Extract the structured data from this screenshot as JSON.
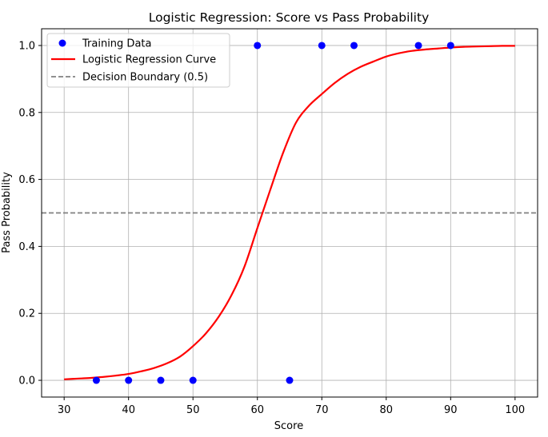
{
  "chart_data": {
    "type": "scatter",
    "title": "Logistic Regression: Score vs Pass Probability",
    "xlabel": "Score",
    "ylabel": "Pass Probability",
    "xlim": [
      26.5,
      103.5
    ],
    "ylim": [
      -0.05,
      1.05
    ],
    "xticks": [
      30,
      40,
      50,
      60,
      70,
      80,
      90,
      100
    ],
    "yticks": [
      0.0,
      0.2,
      0.4,
      0.6,
      0.8,
      1.0
    ],
    "xtick_labels": [
      "30",
      "40",
      "50",
      "60",
      "70",
      "80",
      "90",
      "100"
    ],
    "ytick_labels": [
      "0.0",
      "0.2",
      "0.4",
      "0.6",
      "0.8",
      "1.0"
    ],
    "grid": true,
    "legend_position": "top-left",
    "series": [
      {
        "name": "Training Data",
        "kind": "scatter",
        "color": "#0000ff",
        "x": [
          35,
          40,
          45,
          50,
          60,
          65,
          70,
          75,
          85,
          90
        ],
        "y": [
          0,
          0,
          0,
          0,
          1,
          0,
          1,
          1,
          1,
          1
        ]
      },
      {
        "name": "Logistic Regression Curve",
        "kind": "line",
        "color": "#ff0000",
        "x": [
          30,
          32,
          34,
          36,
          38,
          40,
          42,
          44,
          46,
          48,
          50,
          52,
          54,
          56,
          58,
          60,
          62,
          64,
          66,
          68,
          70,
          72,
          74,
          76,
          78,
          80,
          82,
          84,
          86,
          88,
          90,
          92,
          94,
          96,
          98,
          100
        ],
        "y": [
          0.003,
          0.005,
          0.007,
          0.01,
          0.014,
          0.019,
          0.027,
          0.037,
          0.051,
          0.071,
          0.102,
          0.14,
          0.19,
          0.255,
          0.34,
          0.455,
          0.569,
          0.68,
          0.77,
          0.82,
          0.855,
          0.888,
          0.915,
          0.936,
          0.952,
          0.967,
          0.977,
          0.984,
          0.988,
          0.991,
          0.994,
          0.996,
          0.997,
          0.998,
          0.999,
          0.999
        ]
      },
      {
        "name": "Decision Boundary (0.5)",
        "kind": "hline",
        "color": "#808080",
        "y": 0.5
      }
    ]
  }
}
